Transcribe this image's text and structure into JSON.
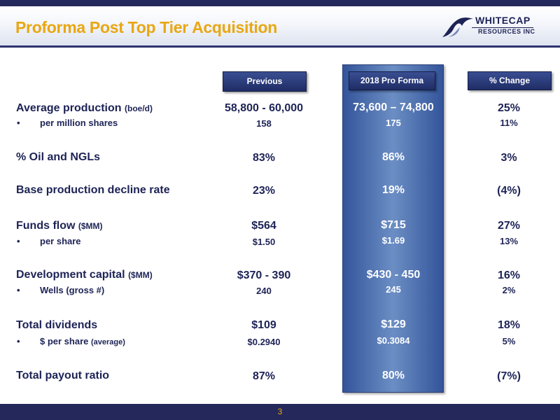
{
  "slide": {
    "title": "Proforma Post Top Tier Acquisition",
    "page_number": "3",
    "accent_color": "#e8a713",
    "navy_color": "#1d2356",
    "highlight_color": "#4a6cae"
  },
  "logo": {
    "name": "WHITECAP",
    "subtitle": "RESOURCES INC"
  },
  "columns": {
    "previous": "Previous",
    "proforma": "2018 Pro Forma",
    "change": "% Change"
  },
  "rows": {
    "avg_prod": {
      "label": "Average production",
      "unit": "(boe/d)",
      "previous": "58,800 - 60,000",
      "proforma": "73,600 – 74,800",
      "change": "25%"
    },
    "avg_prod_sub": {
      "bullet": "•",
      "label": "per million shares",
      "previous": "158",
      "proforma": "175",
      "change": "11%"
    },
    "oil": {
      "label": "% Oil and NGLs",
      "previous": "83%",
      "proforma": "86%",
      "change": "3%"
    },
    "decline": {
      "label": "Base production decline rate",
      "previous": "23%",
      "proforma": "19%",
      "change": "(4%)"
    },
    "funds": {
      "label": "Funds flow",
      "unit": "($MM)",
      "previous": "$564",
      "proforma": "$715",
      "change": "27%"
    },
    "funds_sub": {
      "bullet": "•",
      "label": "per share",
      "previous": "$1.50",
      "proforma": "$1.69",
      "change": "13%"
    },
    "capital": {
      "label": "Development capital",
      "unit": "($MM)",
      "previous": "$370 - 390",
      "proforma": "$430 - 450",
      "change": "16%"
    },
    "capital_sub": {
      "bullet": "•",
      "label": "Wells (gross #)",
      "previous": "240",
      "proforma": "245",
      "change": "2%"
    },
    "dividends": {
      "label": "Total dividends",
      "previous": "$109",
      "proforma": "$129",
      "change": "18%"
    },
    "dividends_sub": {
      "bullet": "•",
      "label": "$ per share",
      "unit": "(average)",
      "previous": "$0.2940",
      "proforma": "$0.3084",
      "change": "5%"
    },
    "payout": {
      "label": "Total payout ratio",
      "previous": "87%",
      "proforma": "80%",
      "change": "(7%)"
    }
  }
}
